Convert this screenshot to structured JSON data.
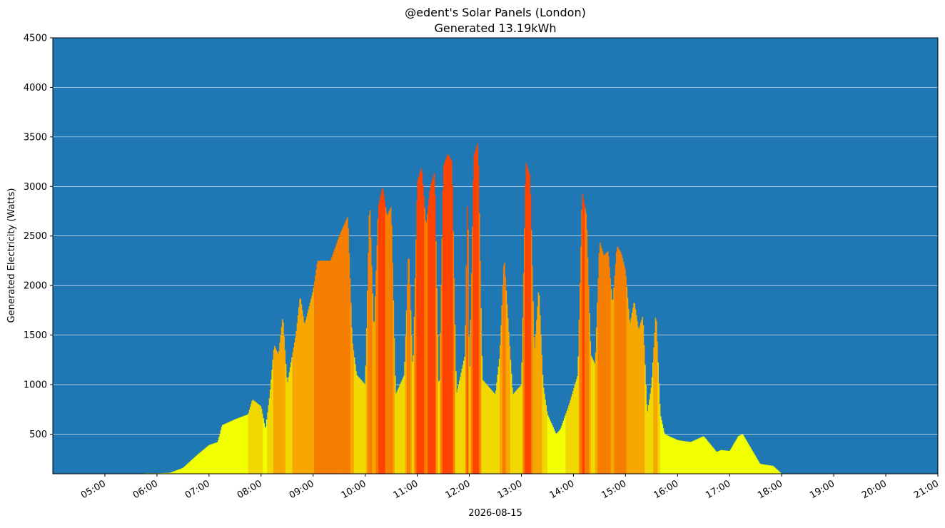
{
  "chart_data": {
    "type": "bar",
    "title": "@edent's Solar Panels (London)",
    "subtitle": "Generated 13.19kWh",
    "ylabel": "Generated Electricity (Watts)",
    "xlabel": "2026-08-15",
    "date": "2026-08-15",
    "ylim": [
      100,
      4500
    ],
    "xlim": [
      "04:00",
      "21:00"
    ],
    "y_ticks": [
      500,
      1000,
      1500,
      2000,
      2500,
      3000,
      3500,
      4000,
      4500
    ],
    "x_ticks": [
      "05:00",
      "06:00",
      "07:00",
      "08:00",
      "09:00",
      "10:00",
      "11:00",
      "12:00",
      "13:00",
      "14:00",
      "15:00",
      "16:00",
      "17:00",
      "18:00",
      "19:00",
      "20:00",
      "21:00"
    ],
    "grid": "horizontal",
    "background_color": "#1f77b4",
    "grid_color": "#ffffff",
    "colormap": [
      "#f2ff00",
      "#f0d800",
      "#f7a700",
      "#f67f00",
      "#ff4300"
    ],
    "profile": [
      [
        "05:45",
        105
      ],
      [
        "06:00",
        105
      ],
      [
        "06:15",
        110
      ],
      [
        "06:30",
        160
      ],
      [
        "06:45",
        280
      ],
      [
        "07:00",
        390
      ],
      [
        "07:10",
        420
      ],
      [
        "07:15",
        590
      ],
      [
        "07:30",
        650
      ],
      [
        "07:45",
        700
      ],
      [
        "07:50",
        850
      ],
      [
        "08:00",
        780
      ],
      [
        "08:05",
        540
      ],
      [
        "08:10",
        900
      ],
      [
        "08:15",
        1400
      ],
      [
        "08:20",
        1300
      ],
      [
        "08:25",
        1700
      ],
      [
        "08:30",
        1000
      ],
      [
        "08:35",
        1250
      ],
      [
        "08:40",
        1500
      ],
      [
        "08:45",
        1900
      ],
      [
        "08:50",
        1600
      ],
      [
        "09:00",
        1950
      ],
      [
        "09:05",
        2250
      ],
      [
        "09:10",
        2250
      ],
      [
        "09:20",
        2250
      ],
      [
        "09:30",
        2500
      ],
      [
        "09:40",
        2700
      ],
      [
        "09:45",
        1450
      ],
      [
        "09:50",
        1100
      ],
      [
        "10:00",
        1000
      ],
      [
        "10:05",
        2900
      ],
      [
        "10:10",
        1500
      ],
      [
        "10:15",
        2800
      ],
      [
        "10:20",
        3000
      ],
      [
        "10:25",
        2700
      ],
      [
        "10:30",
        2800
      ],
      [
        "10:35",
        900
      ],
      [
        "10:40",
        1000
      ],
      [
        "10:45",
        1100
      ],
      [
        "10:50",
        2400
      ],
      [
        "10:55",
        1100
      ],
      [
        "11:00",
        3050
      ],
      [
        "11:05",
        3200
      ],
      [
        "11:10",
        2600
      ],
      [
        "11:15",
        3000
      ],
      [
        "11:20",
        3150
      ],
      [
        "11:25",
        800
      ],
      [
        "11:30",
        3200
      ],
      [
        "11:35",
        3330
      ],
      [
        "11:40",
        3250
      ],
      [
        "11:45",
        900
      ],
      [
        "11:50",
        1100
      ],
      [
        "11:55",
        1300
      ],
      [
        "11:58",
        3100
      ],
      [
        "12:00",
        950
      ],
      [
        "12:05",
        3300
      ],
      [
        "12:10",
        3450
      ],
      [
        "12:15",
        1050
      ],
      [
        "12:30",
        900
      ],
      [
        "12:35",
        1300
      ],
      [
        "12:40",
        2300
      ],
      [
        "12:45",
        1600
      ],
      [
        "12:50",
        900
      ],
      [
        "13:00",
        1000
      ],
      [
        "13:05",
        3250
      ],
      [
        "13:10",
        3100
      ],
      [
        "13:15",
        1300
      ],
      [
        "13:20",
        2000
      ],
      [
        "13:25",
        1000
      ],
      [
        "13:30",
        700
      ],
      [
        "13:40",
        500
      ],
      [
        "13:45",
        550
      ],
      [
        "13:55",
        800
      ],
      [
        "14:05",
        1100
      ],
      [
        "14:10",
        2950
      ],
      [
        "14:15",
        2700
      ],
      [
        "14:20",
        1300
      ],
      [
        "14:25",
        1200
      ],
      [
        "14:30",
        2450
      ],
      [
        "14:35",
        2300
      ],
      [
        "14:40",
        2350
      ],
      [
        "14:45",
        1800
      ],
      [
        "14:50",
        2400
      ],
      [
        "14:55",
        2330
      ],
      [
        "15:00",
        2150
      ],
      [
        "15:05",
        1600
      ],
      [
        "15:10",
        1850
      ],
      [
        "15:15",
        1550
      ],
      [
        "15:20",
        1700
      ],
      [
        "15:25",
        700
      ],
      [
        "15:30",
        1000
      ],
      [
        "15:35",
        1750
      ],
      [
        "15:40",
        700
      ],
      [
        "15:45",
        500
      ],
      [
        "16:00",
        440
      ],
      [
        "16:15",
        420
      ],
      [
        "16:30",
        480
      ],
      [
        "16:45",
        320
      ],
      [
        "16:50",
        340
      ],
      [
        "17:00",
        330
      ],
      [
        "17:10",
        480
      ],
      [
        "17:15",
        500
      ],
      [
        "17:25",
        350
      ],
      [
        "17:35",
        200
      ],
      [
        "17:50",
        180
      ],
      [
        "18:00",
        100
      ]
    ]
  }
}
